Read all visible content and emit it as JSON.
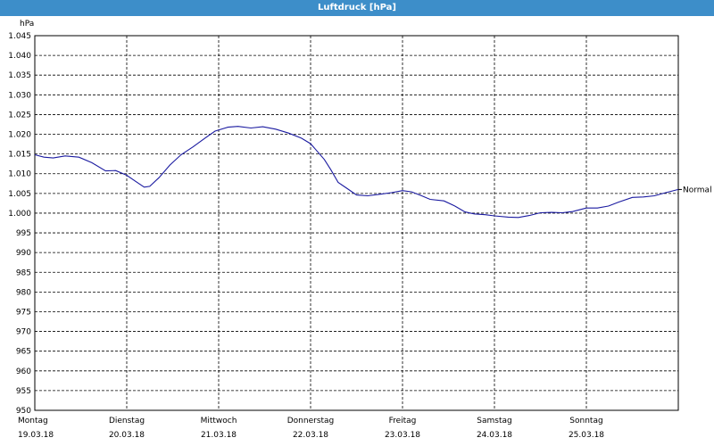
{
  "window": {
    "title": "Luftdruck [hPa]"
  },
  "chart_data": {
    "type": "line",
    "title": "Luftdruck [hPa]",
    "ylabel": "hPa",
    "xlabel": "",
    "ylim": [
      950,
      1045
    ],
    "xlim": [
      0,
      7
    ],
    "grid": true,
    "y_ticks": [
      "950",
      "955",
      "960",
      "965",
      "970",
      "975",
      "980",
      "985",
      "990",
      "995",
      "1.000",
      "1.005",
      "1.010",
      "1.015",
      "1.020",
      "1.025",
      "1.030",
      "1.035",
      "1.040",
      "1.045"
    ],
    "x_ticks": [
      {
        "day": "Montag",
        "date": "19.03.18"
      },
      {
        "day": "Dienstag",
        "date": "20.03.18"
      },
      {
        "day": "Mittwoch",
        "date": "21.03.18"
      },
      {
        "day": "Donnerstag",
        "date": "22.03.18"
      },
      {
        "day": "Freitag",
        "date": "23.03.18"
      },
      {
        "day": "Samstag",
        "date": "24.03.18"
      },
      {
        "day": "Sonntag",
        "date": "25.03.18"
      }
    ],
    "series": [
      {
        "color": "#1a1aa0",
        "points": [
          [
            0.0,
            1014.8
          ],
          [
            0.1,
            1014.2
          ],
          [
            0.2,
            1014.0
          ],
          [
            0.33,
            1014.5
          ],
          [
            0.48,
            1014.2
          ],
          [
            0.62,
            1012.8
          ],
          [
            0.77,
            1010.7
          ],
          [
            0.88,
            1010.8
          ],
          [
            1.0,
            1009.6
          ],
          [
            1.1,
            1008.0
          ],
          [
            1.19,
            1006.6
          ],
          [
            1.25,
            1006.8
          ],
          [
            1.35,
            1009.0
          ],
          [
            1.47,
            1012.2
          ],
          [
            1.59,
            1014.8
          ],
          [
            1.72,
            1016.8
          ],
          [
            1.85,
            1019.0
          ],
          [
            1.96,
            1020.8
          ],
          [
            2.1,
            1021.8
          ],
          [
            2.21,
            1022.0
          ],
          [
            2.35,
            1021.6
          ],
          [
            2.48,
            1021.9
          ],
          [
            2.62,
            1021.3
          ],
          [
            2.76,
            1020.3
          ],
          [
            2.9,
            1019.0
          ],
          [
            3.0,
            1017.6
          ],
          [
            3.06,
            1016.0
          ],
          [
            3.15,
            1013.6
          ],
          [
            3.22,
            1011.0
          ],
          [
            3.3,
            1007.8
          ],
          [
            3.4,
            1006.2
          ],
          [
            3.5,
            1004.6
          ],
          [
            3.62,
            1004.4
          ],
          [
            3.76,
            1004.8
          ],
          [
            3.88,
            1005.2
          ],
          [
            4.0,
            1005.7
          ],
          [
            4.1,
            1005.4
          ],
          [
            4.2,
            1004.5
          ],
          [
            4.3,
            1003.5
          ],
          [
            4.45,
            1003.1
          ],
          [
            4.57,
            1001.8
          ],
          [
            4.68,
            1000.3
          ],
          [
            4.78,
            999.8
          ],
          [
            4.9,
            999.6
          ],
          [
            5.0,
            999.3
          ],
          [
            5.15,
            999.0
          ],
          [
            5.26,
            998.9
          ],
          [
            5.38,
            999.4
          ],
          [
            5.5,
            1000.1
          ],
          [
            5.62,
            1000.2
          ],
          [
            5.74,
            1000.1
          ],
          [
            5.85,
            1000.4
          ],
          [
            6.0,
            1001.3
          ],
          [
            6.12,
            1001.3
          ],
          [
            6.24,
            1001.8
          ],
          [
            6.35,
            1002.8
          ],
          [
            6.5,
            1004.0
          ],
          [
            6.62,
            1004.1
          ],
          [
            6.74,
            1004.4
          ],
          [
            6.85,
            1005.1
          ],
          [
            7.0,
            1006.0
          ]
        ],
        "end_label": "Normal"
      }
    ]
  }
}
